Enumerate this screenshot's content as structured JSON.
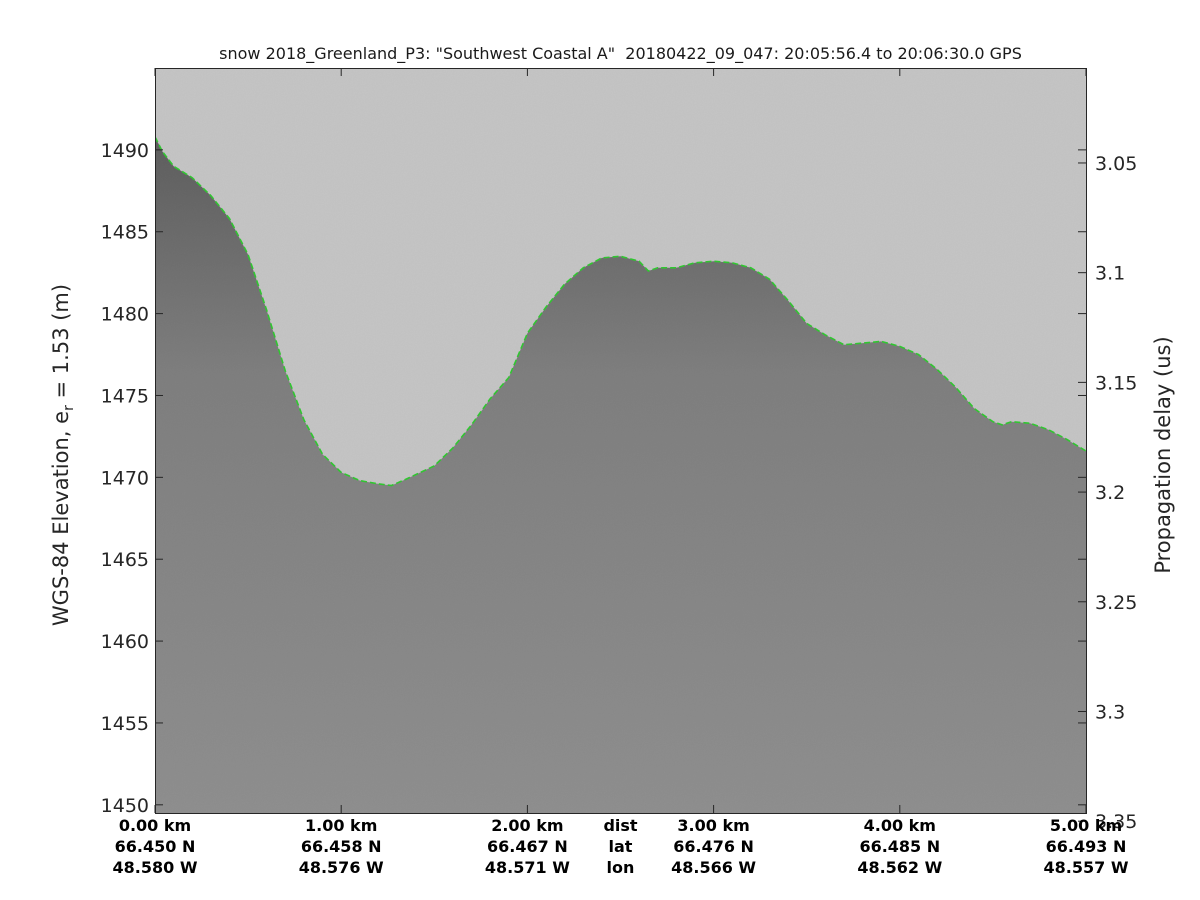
{
  "chart_data": {
    "type": "radar_echogram",
    "title": "snow 2018_Greenland_P3: \"Southwest Coastal A\"  20180422_09_047: 20:05:56.4 to 20:06:30.0 GPS",
    "ylabel_prefix": "WGS-84 Elevation, e",
    "ylabel_sub": "r",
    "ylabel_suffix": " = 1.53 (m)",
    "y2label": "Propagation delay (us)",
    "ylim": [
      1449.5,
      1495
    ],
    "xlim": [
      0,
      5
    ],
    "y_ticks": [
      "1450",
      "1455",
      "1460",
      "1465",
      "1470",
      "1475",
      "1480",
      "1485",
      "1490"
    ],
    "y2_ticks": [
      {
        "label": "3.05",
        "elevation": 1489.2
      },
      {
        "label": "3.1",
        "elevation": 1482.5
      },
      {
        "label": "3.15",
        "elevation": 1475.8
      },
      {
        "label": "3.2",
        "elevation": 1469.1
      },
      {
        "label": "3.25",
        "elevation": 1462.4
      },
      {
        "label": "3.3",
        "elevation": 1455.7
      },
      {
        "label": "3.35",
        "elevation": 1449.0
      }
    ],
    "x_ticks": [
      {
        "km": 0,
        "dist": "0.00 km",
        "lat": "66.450 N",
        "lon": "48.580 W"
      },
      {
        "km": 1,
        "dist": "1.00 km",
        "lat": "66.458 N",
        "lon": "48.576 W"
      },
      {
        "km": 2,
        "dist": "2.00 km",
        "lat": "66.467 N",
        "lon": "48.571 W"
      },
      {
        "km": 3,
        "dist": "3.00 km",
        "lat": "66.476 N",
        "lon": "48.566 W"
      },
      {
        "km": 4,
        "dist": "4.00 km",
        "lat": "66.485 N",
        "lon": "48.562 W"
      },
      {
        "km": 5,
        "dist": "5.00 km",
        "lat": "66.493 N",
        "lon": "48.557 W"
      }
    ],
    "x_row_labels": {
      "km": 2.5,
      "dist": "dist",
      "lat": "lat",
      "lon": "lon"
    },
    "surface_series": {
      "x": [
        0,
        0.04,
        0.1,
        0.2,
        0.3,
        0.4,
        0.5,
        0.6,
        0.7,
        0.8,
        0.9,
        1.0,
        1.1,
        1.2,
        1.27,
        1.35,
        1.5,
        1.6,
        1.7,
        1.8,
        1.9,
        2.0,
        2.1,
        2.2,
        2.3,
        2.4,
        2.5,
        2.6,
        2.65,
        2.7,
        2.8,
        2.9,
        3.0,
        3.1,
        3.2,
        3.3,
        3.4,
        3.5,
        3.6,
        3.7,
        3.8,
        3.9,
        4.0,
        4.1,
        4.2,
        4.3,
        4.4,
        4.5,
        4.55,
        4.6,
        4.7,
        4.8,
        4.9,
        5.0
      ],
      "y": [
        1490.8,
        1489.9,
        1489.0,
        1488.3,
        1487.2,
        1485.8,
        1483.6,
        1480.2,
        1476.5,
        1473.5,
        1471.4,
        1470.3,
        1469.8,
        1469.6,
        1469.5,
        1469.9,
        1470.7,
        1471.8,
        1473.2,
        1474.8,
        1476.1,
        1478.8,
        1480.4,
        1481.8,
        1482.8,
        1483.4,
        1483.5,
        1483.2,
        1482.6,
        1482.8,
        1482.8,
        1483.1,
        1483.2,
        1483.1,
        1482.8,
        1482.1,
        1480.8,
        1479.4,
        1478.7,
        1478.1,
        1478.2,
        1478.3,
        1478.0,
        1477.5,
        1476.6,
        1475.5,
        1474.2,
        1473.4,
        1473.2,
        1473.4,
        1473.3,
        1472.9,
        1472.3,
        1471.6
      ]
    },
    "grid": false,
    "colormap": "gray",
    "colors": {
      "sky": "#c9c9c9",
      "ice_shallow": "#555555",
      "ice_deep": "#8c8c8c",
      "surface_line": "#22cc22",
      "axis": "#262626"
    }
  }
}
